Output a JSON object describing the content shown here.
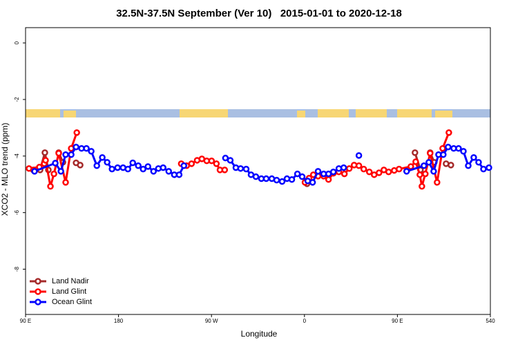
{
  "chart_data": {
    "type": "line",
    "title": "32.5N-37.5N September (Ver 10)   2015-01-01 to 2020-12-18",
    "x_label": "Longitude",
    "y_label": "XCO2 - MLO trend (ppm)",
    "xlim": [
      90,
      540
    ],
    "ylim": [
      -9.6,
      0.54
    ],
    "xticks": [
      {
        "value": 90,
        "label": "90 E"
      },
      180,
      {
        "value": 270,
        "label": "90 W"
      },
      {
        "value": 360,
        "label": "0"
      },
      {
        "value": 450,
        "label": "90 E"
      },
      540
    ],
    "yticks": [
      0,
      -2,
      -4,
      -6,
      -8
    ],
    "legend": "bottom-left",
    "series": [
      {
        "name": "Land Nadir",
        "color": "#a52a2a",
        "x": [
          97.4,
          104.1,
          108.7,
          112.1,
          null,
          122.1,
          126.2,
          null,
          138.9,
          142.9,
          null,
          362.5,
          null,
          467.0,
          472.3,
          null,
          481.7,
          485.7,
          null,
          497.1,
          501.8
        ],
        "values": [
          -4.49,
          -4.49,
          -3.88,
          -4.49,
          null,
          -3.88,
          -4.22,
          null,
          -4.24,
          -4.32,
          null,
          -4.98,
          null,
          -3.88,
          -4.49,
          null,
          -3.88,
          -4.22,
          null,
          -4.27,
          -4.32
        ]
      },
      {
        "name": "Land Glint",
        "color": "#ff0000",
        "x": [
          93.3,
          103.4,
          108.1,
          109.4,
          114.1,
          117.5,
          122.1,
          128.8,
          134.2,
          139.6,
          null,
          240.7,
          246.0,
          250.7,
          256.1,
          260.7,
          265.4,
          270.1,
          274.8,
          278.2,
          282.8,
          null,
          360.5,
          364.5,
          368.6,
          373.2,
          378.6,
          383.3,
          388.0,
          393.3,
          398.7,
          403.4,
          408.1,
          412.7,
          417.4,
          422.8,
          427.5,
          432.2,
          436.9,
          441.5,
          446.9,
          451.6,
          463.0,
          467.7,
          471.7,
          473.7,
          477.0,
          481.7,
          488.4,
          493.8,
          499.8
        ],
        "values": [
          -4.44,
          -4.39,
          -4.27,
          -4.15,
          -5.07,
          -4.63,
          -3.9,
          -4.93,
          -3.73,
          -3.17,
          null,
          -4.27,
          -4.34,
          -4.27,
          -4.15,
          -4.1,
          -4.17,
          -4.17,
          -4.27,
          -4.49,
          -4.49,
          null,
          -4.93,
          -4.78,
          -4.66,
          -4.71,
          -4.71,
          -4.83,
          -4.61,
          -4.56,
          -4.63,
          -4.44,
          -4.32,
          -4.34,
          -4.46,
          -4.56,
          -4.66,
          -4.59,
          -4.49,
          -4.56,
          -4.51,
          -4.46,
          -4.37,
          -4.2,
          -4.66,
          -5.07,
          -4.63,
          -3.9,
          -4.93,
          -3.73,
          -3.17
        ]
      },
      {
        "name": "Ocean Glint",
        "color": "#0000ff",
        "x": [
          98.7,
          118.8,
          124.2,
          128.8,
          134.2,
          138.9,
          144.2,
          148.9,
          153.6,
          159.0,
          164.3,
          169.0,
          173.7,
          179.1,
          184.4,
          189.1,
          193.8,
          199.1,
          203.8,
          208.5,
          213.9,
          218.6,
          223.2,
          228.6,
          234.0,
          238.7,
          243.3,
          null,
          283.5,
          288.2,
          293.6,
          298.2,
          303.6,
          308.3,
          313.0,
          318.3,
          323.0,
          328.4,
          333.1,
          338.4,
          343.1,
          347.8,
          353.2,
          357.8,
          363.2,
          367.9,
          373.2,
          378.6,
          383.3,
          388.0,
          393.3,
          398.0,
          null,
          412.7,
          null,
          458.9,
          475.7,
          480.4,
          485.1,
          489.8,
          494.4,
          499.1,
          504.5,
          509.2,
          513.9,
          518.6,
          523.9,
          528.6,
          533.3,
          538.6
        ],
        "values": [
          -4.54,
          -4.25,
          -4.54,
          -3.95,
          -3.95,
          -3.68,
          -3.73,
          -3.73,
          -3.83,
          -4.34,
          -4.05,
          -4.22,
          -4.46,
          -4.41,
          -4.41,
          -4.46,
          -4.24,
          -4.34,
          -4.46,
          -4.37,
          -4.54,
          -4.44,
          -4.41,
          -4.54,
          -4.66,
          -4.66,
          -4.34,
          null,
          -4.07,
          -4.15,
          -4.41,
          -4.44,
          -4.46,
          -4.66,
          -4.73,
          -4.8,
          -4.8,
          -4.8,
          -4.85,
          -4.9,
          -4.8,
          -4.83,
          -4.63,
          -4.73,
          -4.88,
          -4.93,
          -4.54,
          -4.63,
          -4.63,
          -4.56,
          -4.44,
          -4.41,
          null,
          -3.98,
          null,
          -4.54,
          -4.34,
          -4.22,
          -4.54,
          -3.95,
          -3.95,
          -3.68,
          -3.73,
          -3.73,
          -3.83,
          -4.34,
          -4.05,
          -4.22,
          -4.46,
          -4.41
        ]
      }
    ]
  }
}
